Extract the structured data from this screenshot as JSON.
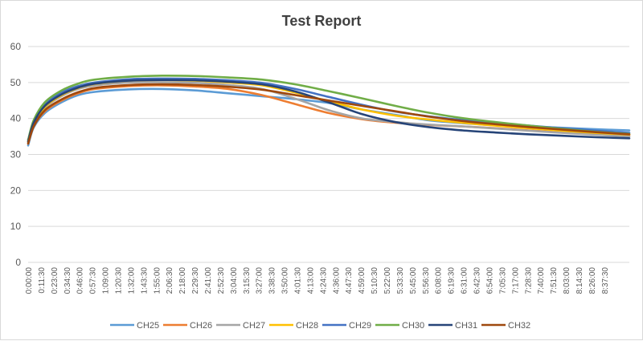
{
  "chart_data": {
    "type": "line",
    "title": "Test Report",
    "xlabel": "",
    "ylabel": "",
    "ylim": [
      0,
      60
    ],
    "y_ticks": [
      0,
      10,
      20,
      30,
      40,
      50,
      60
    ],
    "grid": true,
    "legend_position": "bottom",
    "x_tick_labels": [
      "0:00:00",
      "0:11:30",
      "0:23:00",
      "0:34:30",
      "0:46:00",
      "0:57:30",
      "1:09:00",
      "1:20:30",
      "1:32:00",
      "1:43:30",
      "1:55:00",
      "2:06:30",
      "2:18:00",
      "2:29:30",
      "2:41:00",
      "2:52:30",
      "3:04:00",
      "3:15:30",
      "3:27:00",
      "3:38:30",
      "3:50:00",
      "4:01:30",
      "4:13:00",
      "4:24:30",
      "4:36:00",
      "4:47:30",
      "4:59:00",
      "5:10:30",
      "5:22:00",
      "5:33:30",
      "5:45:00",
      "5:56:30",
      "6:08:00",
      "6:19:30",
      "6:31:00",
      "6:42:30",
      "6:54:00",
      "7:05:30",
      "7:17:00",
      "7:28:30",
      "7:40:00",
      "7:51:30",
      "8:03:00",
      "8:14:30",
      "8:26:00",
      "8:37:30"
    ],
    "x": [
      0,
      5,
      15,
      30,
      45,
      60,
      90,
      120,
      150,
      180,
      210,
      240,
      270,
      300,
      330,
      360,
      390,
      420,
      450,
      480,
      510,
      540
    ],
    "series": [
      {
        "name": "CH25",
        "color": "#5b9bd5",
        "values": [
          32.5,
          37.5,
          41.5,
          44.5,
          46.5,
          47.4,
          48.1,
          48.2,
          47.8,
          47.0,
          46.2,
          45.4,
          44.3,
          42.5,
          41.0,
          39.5,
          38.7,
          38.1,
          37.8,
          37.4,
          37.0,
          36.7
        ]
      },
      {
        "name": "CH26",
        "color": "#ed7d31",
        "values": [
          33.0,
          37.8,
          42.0,
          45.0,
          47.0,
          48.2,
          49.0,
          49.2,
          48.9,
          48.2,
          46.5,
          44.0,
          41.5,
          39.8,
          38.8,
          38.2,
          37.8,
          37.3,
          36.7,
          36.1,
          35.6,
          35.2
        ]
      },
      {
        "name": "CH27",
        "color": "#a5a5a5",
        "values": [
          33.5,
          38.5,
          43.0,
          46.2,
          48.2,
          49.2,
          50.0,
          50.1,
          49.9,
          49.3,
          48.2,
          45.5,
          42.3,
          40.0,
          39.0,
          38.3,
          37.8,
          37.2,
          36.6,
          36.0,
          35.5,
          35.0
        ]
      },
      {
        "name": "CH28",
        "color": "#ffc000",
        "values": [
          33.5,
          38.5,
          43.2,
          46.5,
          48.5,
          49.6,
          50.5,
          50.7,
          50.5,
          50.0,
          49.2,
          47.2,
          44.8,
          42.5,
          40.8,
          39.7,
          38.8,
          38.0,
          37.3,
          36.6,
          36.0,
          35.5
        ]
      },
      {
        "name": "CH29",
        "color": "#4472c4",
        "values": [
          34.0,
          39.0,
          44.0,
          47.2,
          49.0,
          50.0,
          50.9,
          51.1,
          51.0,
          50.6,
          49.9,
          48.2,
          46.0,
          43.8,
          41.9,
          40.6,
          39.6,
          38.8,
          38.0,
          37.3,
          36.6,
          36.0
        ]
      },
      {
        "name": "CH30",
        "color": "#70ad47",
        "values": [
          34.0,
          39.5,
          44.5,
          47.8,
          49.7,
          50.8,
          51.6,
          51.9,
          51.8,
          51.4,
          50.8,
          49.5,
          47.6,
          45.6,
          43.5,
          41.6,
          40.1,
          39.0,
          38.0,
          37.1,
          36.3,
          35.7
        ]
      },
      {
        "name": "CH31",
        "color": "#264478",
        "values": [
          33.5,
          38.8,
          43.5,
          46.7,
          48.6,
          49.7,
          50.5,
          50.7,
          50.6,
          50.2,
          49.5,
          47.5,
          44.5,
          41.2,
          39.0,
          37.6,
          36.7,
          36.1,
          35.6,
          35.2,
          34.8,
          34.5
        ]
      },
      {
        "name": "CH32",
        "color": "#9e480e",
        "values": [
          33.0,
          37.8,
          42.3,
          45.3,
          47.3,
          48.5,
          49.3,
          49.5,
          49.3,
          48.8,
          48.0,
          46.5,
          45.0,
          43.5,
          42.0,
          40.5,
          39.3,
          38.4,
          37.6,
          36.9,
          36.2,
          35.6
        ]
      }
    ]
  }
}
